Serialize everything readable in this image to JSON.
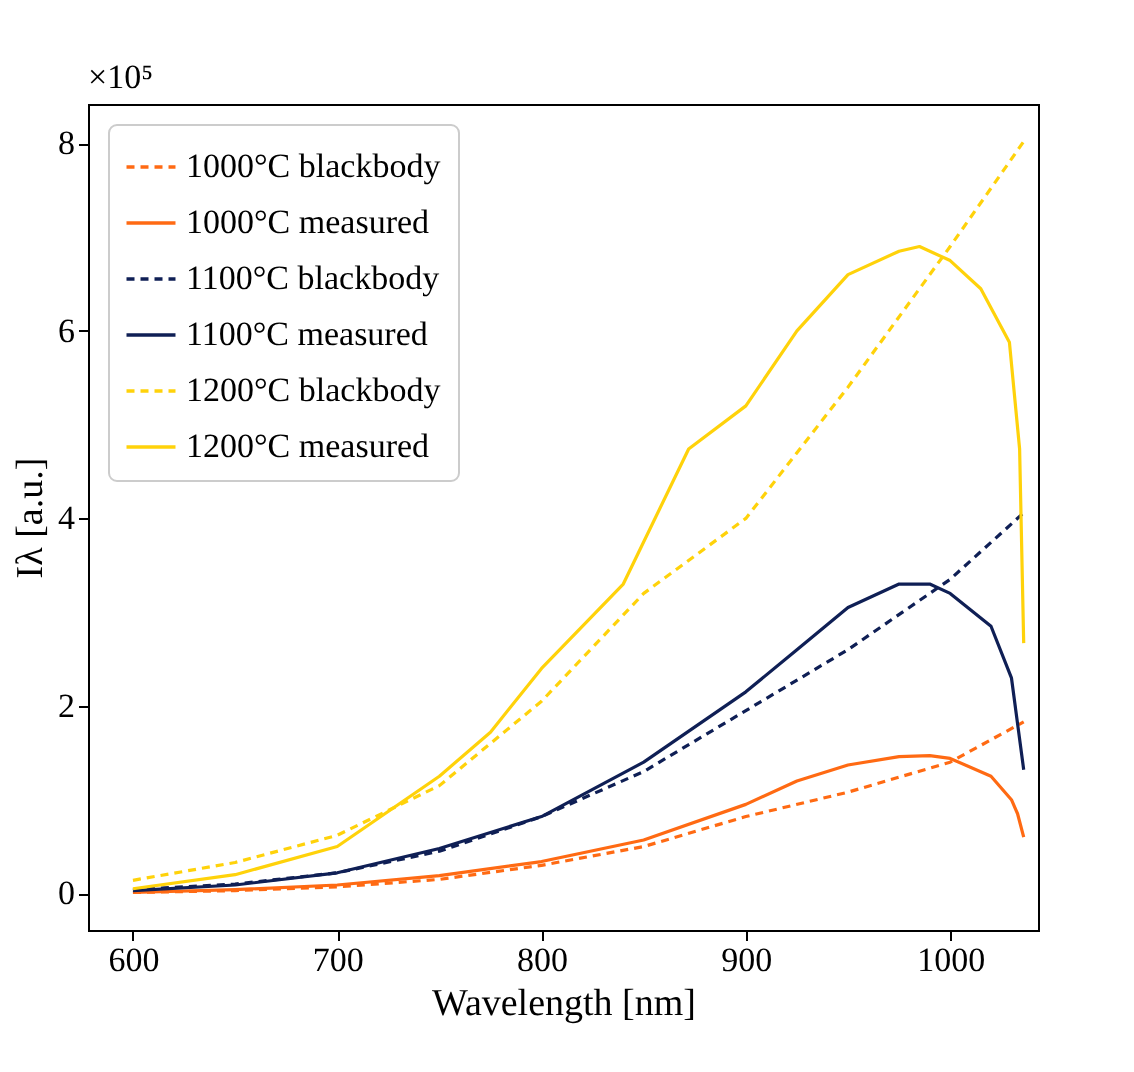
{
  "chart_data": {
    "type": "line",
    "xlabel": "Wavelength [nm]",
    "ylabel": "Iλ [a.u.]",
    "annotations": [
      "×10⁵"
    ],
    "xlim": [
      578,
      1043
    ],
    "ylim": [
      -0.39,
      8.42
    ],
    "xticks": [
      600,
      700,
      800,
      900,
      1000
    ],
    "yticks": [
      0,
      2,
      4,
      6,
      8
    ],
    "grid": false,
    "legend": "top left",
    "marker": "none",
    "series": [
      {
        "name": "1000°C blackbody",
        "color": "#ff6a13",
        "line_style": "dashed",
        "x": [
          600,
          650,
          700,
          750,
          800,
          850,
          900,
          950,
          1000,
          1036
        ],
        "values": [
          0.01,
          0.03,
          0.07,
          0.15,
          0.3,
          0.5,
          0.82,
          1.08,
          1.4,
          1.83
        ]
      },
      {
        "name": "1000°C measured",
        "color": "#ff6a13",
        "line_style": "solid",
        "x": [
          600,
          650,
          700,
          750,
          800,
          850,
          900,
          925,
          950,
          975,
          990,
          1000,
          1020,
          1030,
          1033,
          1036
        ],
        "values": [
          0.01,
          0.04,
          0.09,
          0.19,
          0.34,
          0.57,
          0.95,
          1.2,
          1.37,
          1.46,
          1.47,
          1.44,
          1.25,
          1.0,
          0.85,
          0.6
        ]
      },
      {
        "name": "1100°C blackbody",
        "color": "#0f1f55",
        "line_style": "dashed",
        "x": [
          600,
          650,
          700,
          750,
          800,
          850,
          900,
          950,
          1000,
          1036
        ],
        "values": [
          0.04,
          0.1,
          0.22,
          0.45,
          0.82,
          1.3,
          1.95,
          2.6,
          3.35,
          4.06
        ]
      },
      {
        "name": "1100°C measured",
        "color": "#0f1f55",
        "line_style": "solid",
        "x": [
          600,
          650,
          700,
          750,
          800,
          850,
          900,
          925,
          950,
          975,
          990,
          1000,
          1020,
          1030,
          1036
        ],
        "values": [
          0.03,
          0.09,
          0.22,
          0.48,
          0.82,
          1.4,
          2.15,
          2.6,
          3.05,
          3.3,
          3.3,
          3.2,
          2.85,
          2.3,
          1.32
        ]
      },
      {
        "name": "1200°C blackbody",
        "color": "#ffd20a",
        "line_style": "dashed",
        "x": [
          600,
          650,
          700,
          750,
          800,
          850,
          900,
          950,
          1000,
          1036
        ],
        "values": [
          0.14,
          0.33,
          0.62,
          1.15,
          2.05,
          3.2,
          4.0,
          5.4,
          6.9,
          8.02
        ]
      },
      {
        "name": "1200°C measured",
        "color": "#ffd20a",
        "line_style": "solid",
        "x": [
          600,
          650,
          700,
          750,
          775,
          800,
          840,
          872,
          900,
          925,
          950,
          975,
          985,
          1000,
          1015,
          1029,
          1034,
          1036
        ],
        "values": [
          0.05,
          0.2,
          0.5,
          1.25,
          1.72,
          2.4,
          3.3,
          4.74,
          5.2,
          6.0,
          6.6,
          6.85,
          6.9,
          6.75,
          6.45,
          5.88,
          4.74,
          2.67
        ]
      }
    ]
  }
}
